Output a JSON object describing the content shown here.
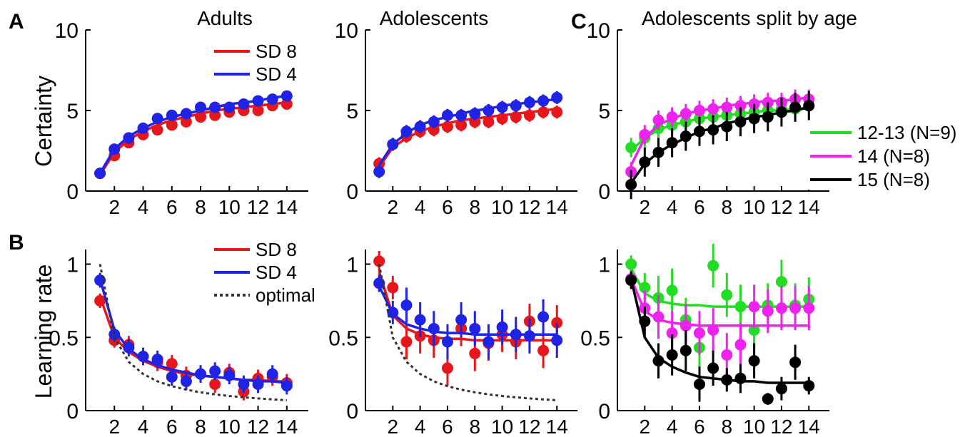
{
  "figure": {
    "panel_letters": [
      "A",
      "B",
      "C"
    ],
    "ylabels": [
      "Certainty",
      "Learning rate"
    ],
    "column_titles": [
      "Adults",
      "Adolescents",
      "Adolescents split by age"
    ]
  },
  "colors": {
    "sd8": "#e8161b",
    "sd4": "#1f23e6",
    "age_12_13": "#22dd22",
    "age_14": "#ee22ee",
    "age_15": "#000000",
    "optimal": "#333333"
  },
  "chart_data": [
    {
      "id": "adults-certainty",
      "type": "line",
      "title": "Adults",
      "xlabel": "",
      "ylabel": "Certainty",
      "xlim": [
        0,
        15.5
      ],
      "ylim": [
        0,
        10
      ],
      "xticks": [
        2,
        4,
        6,
        8,
        10,
        12,
        14
      ],
      "xtick_labels": [
        "2",
        "4",
        "6",
        "8",
        "10",
        "12",
        "14"
      ],
      "yticks": [
        0,
        5,
        10
      ],
      "ytick_labels": [
        "0",
        "5",
        "10"
      ],
      "legend": {
        "position": "top-right",
        "entries": [
          "SD 8",
          "SD 4"
        ]
      },
      "x": [
        1,
        2,
        3,
        4,
        5,
        6,
        7,
        8,
        9,
        10,
        11,
        12,
        13,
        14
      ],
      "series": [
        {
          "name": "SD 8",
          "color": "#e8161b",
          "points": [
            1.1,
            2.2,
            3.0,
            3.5,
            3.8,
            4.1,
            4.3,
            4.6,
            4.7,
            4.9,
            5.0,
            5.0,
            5.3,
            5.4
          ],
          "err": [
            0.3,
            0.3,
            0.3,
            0.3,
            0.3,
            0.3,
            0.3,
            0.3,
            0.3,
            0.3,
            0.3,
            0.3,
            0.3,
            0.3
          ],
          "fit": [
            1.0,
            2.4,
            3.2,
            3.7,
            4.1,
            4.4,
            4.6,
            4.8,
            5.0,
            5.1,
            5.2,
            5.3,
            5.4,
            5.5
          ]
        },
        {
          "name": "SD 4",
          "color": "#1f23e6",
          "points": [
            1.1,
            2.6,
            3.3,
            3.9,
            4.5,
            4.7,
            4.8,
            5.2,
            5.2,
            5.2,
            5.4,
            5.6,
            5.7,
            5.9
          ],
          "err": [
            0.3,
            0.3,
            0.3,
            0.3,
            0.3,
            0.3,
            0.3,
            0.3,
            0.3,
            0.3,
            0.3,
            0.3,
            0.3,
            0.3
          ],
          "fit": [
            1.1,
            2.6,
            3.4,
            3.9,
            4.3,
            4.6,
            4.8,
            5.0,
            5.2,
            5.4,
            5.5,
            5.6,
            5.8,
            5.9
          ]
        }
      ]
    },
    {
      "id": "adolescents-certainty",
      "type": "line",
      "title": "Adolescents",
      "xlabel": "",
      "ylabel": "",
      "xlim": [
        0,
        15.5
      ],
      "ylim": [
        0,
        10
      ],
      "xticks": [
        2,
        4,
        6,
        8,
        10,
        12,
        14
      ],
      "xtick_labels": [
        "2",
        "4",
        "6",
        "8",
        "10",
        "12",
        "14"
      ],
      "yticks": [
        0,
        5,
        10
      ],
      "ytick_labels": [
        "0",
        "5",
        "10"
      ],
      "x": [
        1,
        2,
        3,
        4,
        5,
        6,
        7,
        8,
        9,
        10,
        11,
        12,
        13,
        14
      ],
      "series": [
        {
          "name": "SD 8",
          "color": "#e8161b",
          "points": [
            1.7,
            2.9,
            3.4,
            3.7,
            3.8,
            4.0,
            4.1,
            4.3,
            4.3,
            4.5,
            4.6,
            4.7,
            4.9,
            4.9
          ],
          "err": [
            0.4,
            0.4,
            0.4,
            0.4,
            0.4,
            0.4,
            0.4,
            0.4,
            0.4,
            0.4,
            0.4,
            0.4,
            0.4,
            0.4
          ],
          "fit": [
            1.5,
            2.7,
            3.3,
            3.7,
            4.0,
            4.2,
            4.4,
            4.5,
            4.6,
            4.7,
            4.8,
            4.9,
            5.0,
            5.1
          ]
        },
        {
          "name": "SD 4",
          "color": "#1f23e6",
          "points": [
            1.2,
            2.9,
            3.7,
            4.0,
            4.3,
            4.7,
            4.7,
            4.8,
            5.0,
            5.2,
            5.3,
            5.5,
            5.6,
            5.8
          ],
          "err": [
            0.4,
            0.4,
            0.4,
            0.4,
            0.4,
            0.4,
            0.4,
            0.4,
            0.4,
            0.4,
            0.4,
            0.4,
            0.4,
            0.4
          ],
          "fit": [
            1.6,
            2.9,
            3.6,
            4.1,
            4.4,
            4.6,
            4.8,
            5.0,
            5.1,
            5.3,
            5.4,
            5.5,
            5.6,
            5.7
          ]
        }
      ]
    },
    {
      "id": "age-split-certainty",
      "type": "line",
      "title": "Adolescents split by age",
      "xlabel": "",
      "ylabel": "",
      "xlim": [
        0,
        15.5
      ],
      "ylim": [
        0,
        10
      ],
      "xticks": [
        2,
        4,
        6,
        8,
        10,
        12,
        14
      ],
      "xtick_labels": [
        "2",
        "4",
        "6",
        "8",
        "10",
        "12",
        "14"
      ],
      "yticks": [
        0,
        5,
        10
      ],
      "ytick_labels": [
        "0",
        "5",
        "10"
      ],
      "legend": {
        "position": "right",
        "entries": [
          "12-13 (N=9)",
          "14 (N=8)",
          "15 (N=8)"
        ]
      },
      "x": [
        1,
        2,
        3,
        4,
        5,
        6,
        7,
        8,
        9,
        10,
        11,
        12,
        13,
        14
      ],
      "series": [
        {
          "name": "12-13 (N=9)",
          "color": "#22dd22",
          "points": [
            2.7,
            3.3,
            3.9,
            4.1,
            4.3,
            4.5,
            4.6,
            4.7,
            4.8,
            4.9,
            5.0,
            5.1,
            5.1,
            5.3
          ],
          "err": [
            0.6,
            0.6,
            0.6,
            0.6,
            0.6,
            0.6,
            0.6,
            0.6,
            0.6,
            0.6,
            0.6,
            0.6,
            0.6,
            0.6
          ],
          "fit": [
            2.5,
            3.3,
            3.8,
            4.1,
            4.3,
            4.5,
            4.6,
            4.7,
            4.8,
            4.9,
            5.0,
            5.0,
            5.1,
            5.2
          ]
        },
        {
          "name": "14 (N=8)",
          "color": "#ee22ee",
          "points": [
            1.2,
            3.5,
            4.4,
            4.6,
            4.8,
            5.0,
            5.1,
            5.2,
            5.3,
            5.4,
            5.5,
            5.5,
            5.7,
            5.7
          ],
          "err": [
            0.6,
            0.6,
            0.6,
            0.6,
            0.6,
            0.6,
            0.6,
            0.6,
            0.6,
            0.6,
            0.6,
            0.6,
            0.6,
            0.6
          ],
          "fit": [
            1.6,
            3.3,
            4.1,
            4.5,
            4.8,
            5.0,
            5.1,
            5.3,
            5.4,
            5.5,
            5.6,
            5.6,
            5.7,
            5.8
          ]
        },
        {
          "name": "15 (N=8)",
          "color": "#000000",
          "points": [
            0.4,
            1.8,
            2.4,
            3.0,
            3.4,
            3.7,
            3.8,
            4.0,
            4.3,
            4.5,
            4.6,
            4.9,
            5.2,
            5.3
          ],
          "err": [
            0.9,
            0.9,
            0.9,
            0.9,
            0.9,
            0.9,
            0.9,
            0.9,
            0.9,
            0.9,
            0.9,
            0.9,
            0.9,
            0.9
          ],
          "fit": [
            0.5,
            1.7,
            2.4,
            2.9,
            3.3,
            3.7,
            3.9,
            4.2,
            4.4,
            4.6,
            4.7,
            4.9,
            5.0,
            5.2
          ]
        }
      ]
    },
    {
      "id": "adults-learning-rate",
      "type": "line",
      "title": "",
      "xlabel": "",
      "ylabel": "Learning rate",
      "xlim": [
        0,
        15.5
      ],
      "ylim": [
        0,
        1.1
      ],
      "xticks": [
        2,
        4,
        6,
        8,
        10,
        12,
        14
      ],
      "xtick_labels": [
        "2",
        "4",
        "6",
        "8",
        "10",
        "12",
        "14"
      ],
      "yticks": [
        0,
        0.5,
        1
      ],
      "ytick_labels": [
        "0",
        "0.5",
        "1"
      ],
      "legend": {
        "position": "top-right",
        "entries": [
          "SD 8",
          "SD 4",
          "optimal"
        ]
      },
      "x": [
        1,
        2,
        3,
        4,
        5,
        6,
        7,
        8,
        9,
        10,
        11,
        12,
        13,
        14
      ],
      "series": [
        {
          "name": "SD 8",
          "color": "#e8161b",
          "points": [
            0.75,
            0.48,
            0.45,
            0.37,
            0.33,
            0.32,
            0.24,
            0.25,
            0.18,
            0.26,
            0.13,
            0.22,
            0.23,
            0.19
          ],
          "err": [
            0.05,
            0.05,
            0.06,
            0.06,
            0.06,
            0.06,
            0.06,
            0.06,
            0.06,
            0.06,
            0.06,
            0.06,
            0.06,
            0.06
          ],
          "fit": [
            0.78,
            0.5,
            0.4,
            0.34,
            0.3,
            0.27,
            0.25,
            0.24,
            0.23,
            0.22,
            0.21,
            0.21,
            0.2,
            0.2
          ]
        },
        {
          "name": "SD 4",
          "color": "#1f23e6",
          "points": [
            0.89,
            0.52,
            0.43,
            0.37,
            0.35,
            0.23,
            0.2,
            0.25,
            0.27,
            0.24,
            0.18,
            0.18,
            0.25,
            0.17
          ],
          "err": [
            0.05,
            0.05,
            0.06,
            0.06,
            0.06,
            0.06,
            0.06,
            0.06,
            0.06,
            0.06,
            0.06,
            0.06,
            0.06,
            0.06
          ],
          "fit": [
            0.9,
            0.55,
            0.42,
            0.35,
            0.31,
            0.28,
            0.26,
            0.24,
            0.23,
            0.22,
            0.21,
            0.2,
            0.2,
            0.19
          ]
        },
        {
          "name": "optimal",
          "color": "#333333",
          "dashed": true,
          "fit": [
            1.0,
            0.5,
            0.333,
            0.25,
            0.2,
            0.167,
            0.143,
            0.125,
            0.111,
            0.1,
            0.091,
            0.083,
            0.077,
            0.071
          ]
        }
      ]
    },
    {
      "id": "adolescents-learning-rate",
      "type": "line",
      "title": "",
      "xlabel": "",
      "ylabel": "",
      "xlim": [
        0,
        15.5
      ],
      "ylim": [
        0,
        1.1
      ],
      "xticks": [
        2,
        4,
        6,
        8,
        10,
        12,
        14
      ],
      "xtick_labels": [
        "2",
        "4",
        "6",
        "8",
        "10",
        "12",
        "14"
      ],
      "yticks": [
        0,
        0.5,
        1
      ],
      "ytick_labels": [
        "0",
        "0.5",
        "1"
      ],
      "x": [
        1,
        2,
        3,
        4,
        5,
        6,
        7,
        8,
        9,
        10,
        11,
        12,
        13,
        14
      ],
      "series": [
        {
          "name": "SD 8",
          "color": "#e8161b",
          "points": [
            1.02,
            0.84,
            0.47,
            0.51,
            0.48,
            0.29,
            0.56,
            0.39,
            0.46,
            0.52,
            0.47,
            0.61,
            0.41,
            0.6
          ],
          "err": [
            0.07,
            0.08,
            0.12,
            0.12,
            0.12,
            0.12,
            0.12,
            0.12,
            0.12,
            0.12,
            0.12,
            0.12,
            0.12,
            0.12
          ],
          "fit": [
            0.95,
            0.65,
            0.56,
            0.52,
            0.5,
            0.49,
            0.49,
            0.48,
            0.48,
            0.48,
            0.48,
            0.48,
            0.48,
            0.48
          ]
        },
        {
          "name": "SD 4",
          "color": "#1f23e6",
          "points": [
            0.87,
            0.67,
            0.72,
            0.62,
            0.56,
            0.47,
            0.62,
            0.56,
            0.47,
            0.57,
            0.52,
            0.51,
            0.64,
            0.48
          ],
          "err": [
            0.06,
            0.08,
            0.12,
            0.12,
            0.12,
            0.12,
            0.12,
            0.12,
            0.12,
            0.12,
            0.12,
            0.12,
            0.12,
            0.12
          ],
          "fit": [
            0.85,
            0.66,
            0.59,
            0.56,
            0.54,
            0.53,
            0.53,
            0.52,
            0.52,
            0.52,
            0.52,
            0.52,
            0.52,
            0.52
          ]
        },
        {
          "name": "optimal",
          "color": "#333333",
          "dashed": true,
          "fit": [
            1.0,
            0.5,
            0.333,
            0.25,
            0.2,
            0.167,
            0.143,
            0.125,
            0.111,
            0.1,
            0.091,
            0.083,
            0.077,
            0.071
          ]
        }
      ]
    },
    {
      "id": "age-split-learning-rate",
      "type": "line",
      "title": "",
      "xlabel": "",
      "ylabel": "",
      "xlim": [
        0,
        15.5
      ],
      "ylim": [
        0,
        1.1
      ],
      "xticks": [
        2,
        4,
        6,
        8,
        10,
        12,
        14
      ],
      "xtick_labels": [
        "2",
        "4",
        "6",
        "8",
        "10",
        "12",
        "14"
      ],
      "yticks": [
        0,
        0.5,
        1
      ],
      "ytick_labels": [
        "0",
        "0.5",
        "1"
      ],
      "x": [
        1,
        2,
        3,
        4,
        5,
        6,
        7,
        8,
        9,
        10,
        11,
        12,
        13,
        14
      ],
      "series": [
        {
          "name": "12-13 (N=9)",
          "color": "#22dd22",
          "points": [
            1.0,
            0.84,
            0.77,
            0.82,
            0.62,
            0.43,
            0.99,
            0.79,
            0.71,
            0.55,
            0.72,
            0.88,
            0.72,
            0.76
          ],
          "err": [
            0.06,
            0.1,
            0.15,
            0.15,
            0.15,
            0.15,
            0.15,
            0.15,
            0.15,
            0.15,
            0.15,
            0.15,
            0.15,
            0.15
          ],
          "fit": [
            0.97,
            0.8,
            0.75,
            0.73,
            0.72,
            0.72,
            0.71,
            0.71,
            0.71,
            0.71,
            0.71,
            0.71,
            0.71,
            0.71
          ]
        },
        {
          "name": "14 (N=8)",
          "color": "#ee22ee",
          "points": [
            0.9,
            0.7,
            0.64,
            0.53,
            0.58,
            0.53,
            0.55,
            0.38,
            0.45,
            0.71,
            0.68,
            0.7,
            0.7,
            0.7
          ],
          "err": [
            0.06,
            0.12,
            0.15,
            0.15,
            0.15,
            0.15,
            0.15,
            0.15,
            0.15,
            0.15,
            0.15,
            0.15,
            0.15,
            0.15
          ],
          "fit": [
            0.9,
            0.68,
            0.62,
            0.6,
            0.59,
            0.58,
            0.58,
            0.58,
            0.58,
            0.58,
            0.58,
            0.58,
            0.58,
            0.58
          ]
        },
        {
          "name": "15 (N=8)",
          "color": "#000000",
          "points": [
            0.89,
            0.61,
            0.34,
            0.38,
            0.41,
            0.18,
            0.29,
            0.21,
            0.22,
            0.34,
            0.08,
            0.15,
            0.33,
            0.17
          ],
          "err": [
            0.06,
            0.1,
            0.12,
            0.14,
            0.14,
            0.12,
            0.12,
            0.08,
            0.1,
            0.12,
            0.04,
            0.08,
            0.12,
            0.06
          ],
          "fit": [
            0.9,
            0.5,
            0.36,
            0.3,
            0.26,
            0.23,
            0.22,
            0.21,
            0.2,
            0.2,
            0.19,
            0.19,
            0.19,
            0.19
          ]
        }
      ]
    }
  ]
}
